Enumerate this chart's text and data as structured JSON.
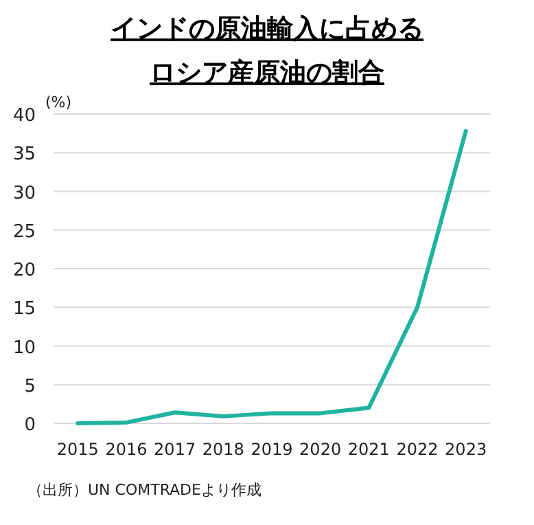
{
  "chart_data": {
    "type": "line",
    "title": "インドの原油輸入に占めるロシア産原油の割合",
    "ylabel": "(%)",
    "categories": [
      "2015",
      "2016",
      "2017",
      "2018",
      "2019",
      "2020",
      "2021",
      "2022",
      "2023"
    ],
    "series": [
      {
        "color": "#1fb3a0",
        "values": [
          0.0,
          0.1,
          1.4,
          0.9,
          1.3,
          1.3,
          2.0,
          15.0,
          37.8
        ]
      }
    ],
    "ylim": [
      0,
      40
    ],
    "yticks": [
      0,
      5,
      10,
      15,
      20,
      25,
      30,
      35,
      40
    ],
    "grid": "y",
    "annotations": [
      "（出所）UN COMTRADEより作成"
    ]
  }
}
